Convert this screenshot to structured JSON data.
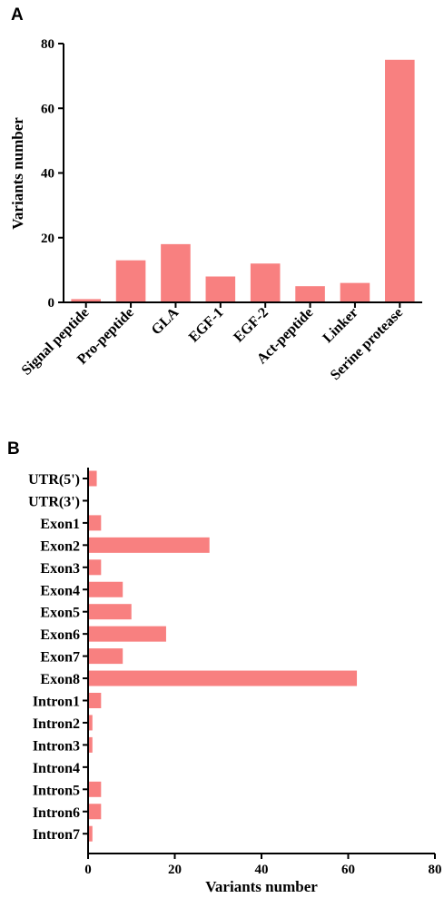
{
  "colors": {
    "bar": "#F88080",
    "axis": "#000000"
  },
  "chart_data": [
    {
      "panel": "A",
      "type": "bar",
      "orientation": "vertical",
      "categories": [
        "Signal peptide",
        "Pro-peptide",
        "GLA",
        "EGF-1",
        "EGF-2",
        "Act-peptide",
        "Linker",
        "Serine protease"
      ],
      "values": [
        1,
        13,
        18,
        8,
        12,
        5,
        6,
        75
      ],
      "ylabel": "Variants number",
      "xlabel": "",
      "ylim": [
        0,
        80
      ],
      "yticks": [
        "0",
        "20",
        "40",
        "60",
        "80"
      ],
      "grid": false,
      "legend": "none"
    },
    {
      "panel": "B",
      "type": "bar",
      "orientation": "horizontal",
      "categories": [
        "UTR(5')",
        "UTR(3')",
        "Exon1",
        "Exon2",
        "Exon3",
        "Exon4",
        "Exon5",
        "Exon6",
        "Exon7",
        "Exon8",
        "Intron1",
        "Intron2",
        "Intron3",
        "Intron4",
        "Intron5",
        "Intron6",
        "Intron7"
      ],
      "values": [
        2,
        0,
        3,
        28,
        3,
        8,
        10,
        18,
        8,
        62,
        3,
        1,
        1,
        0,
        3,
        3,
        1
      ],
      "xlabel": "Variants number",
      "ylabel": "",
      "xlim": [
        0,
        80
      ],
      "xticks": [
        "0",
        "20",
        "40",
        "60",
        "80"
      ],
      "grid": false,
      "legend": "none"
    }
  ]
}
